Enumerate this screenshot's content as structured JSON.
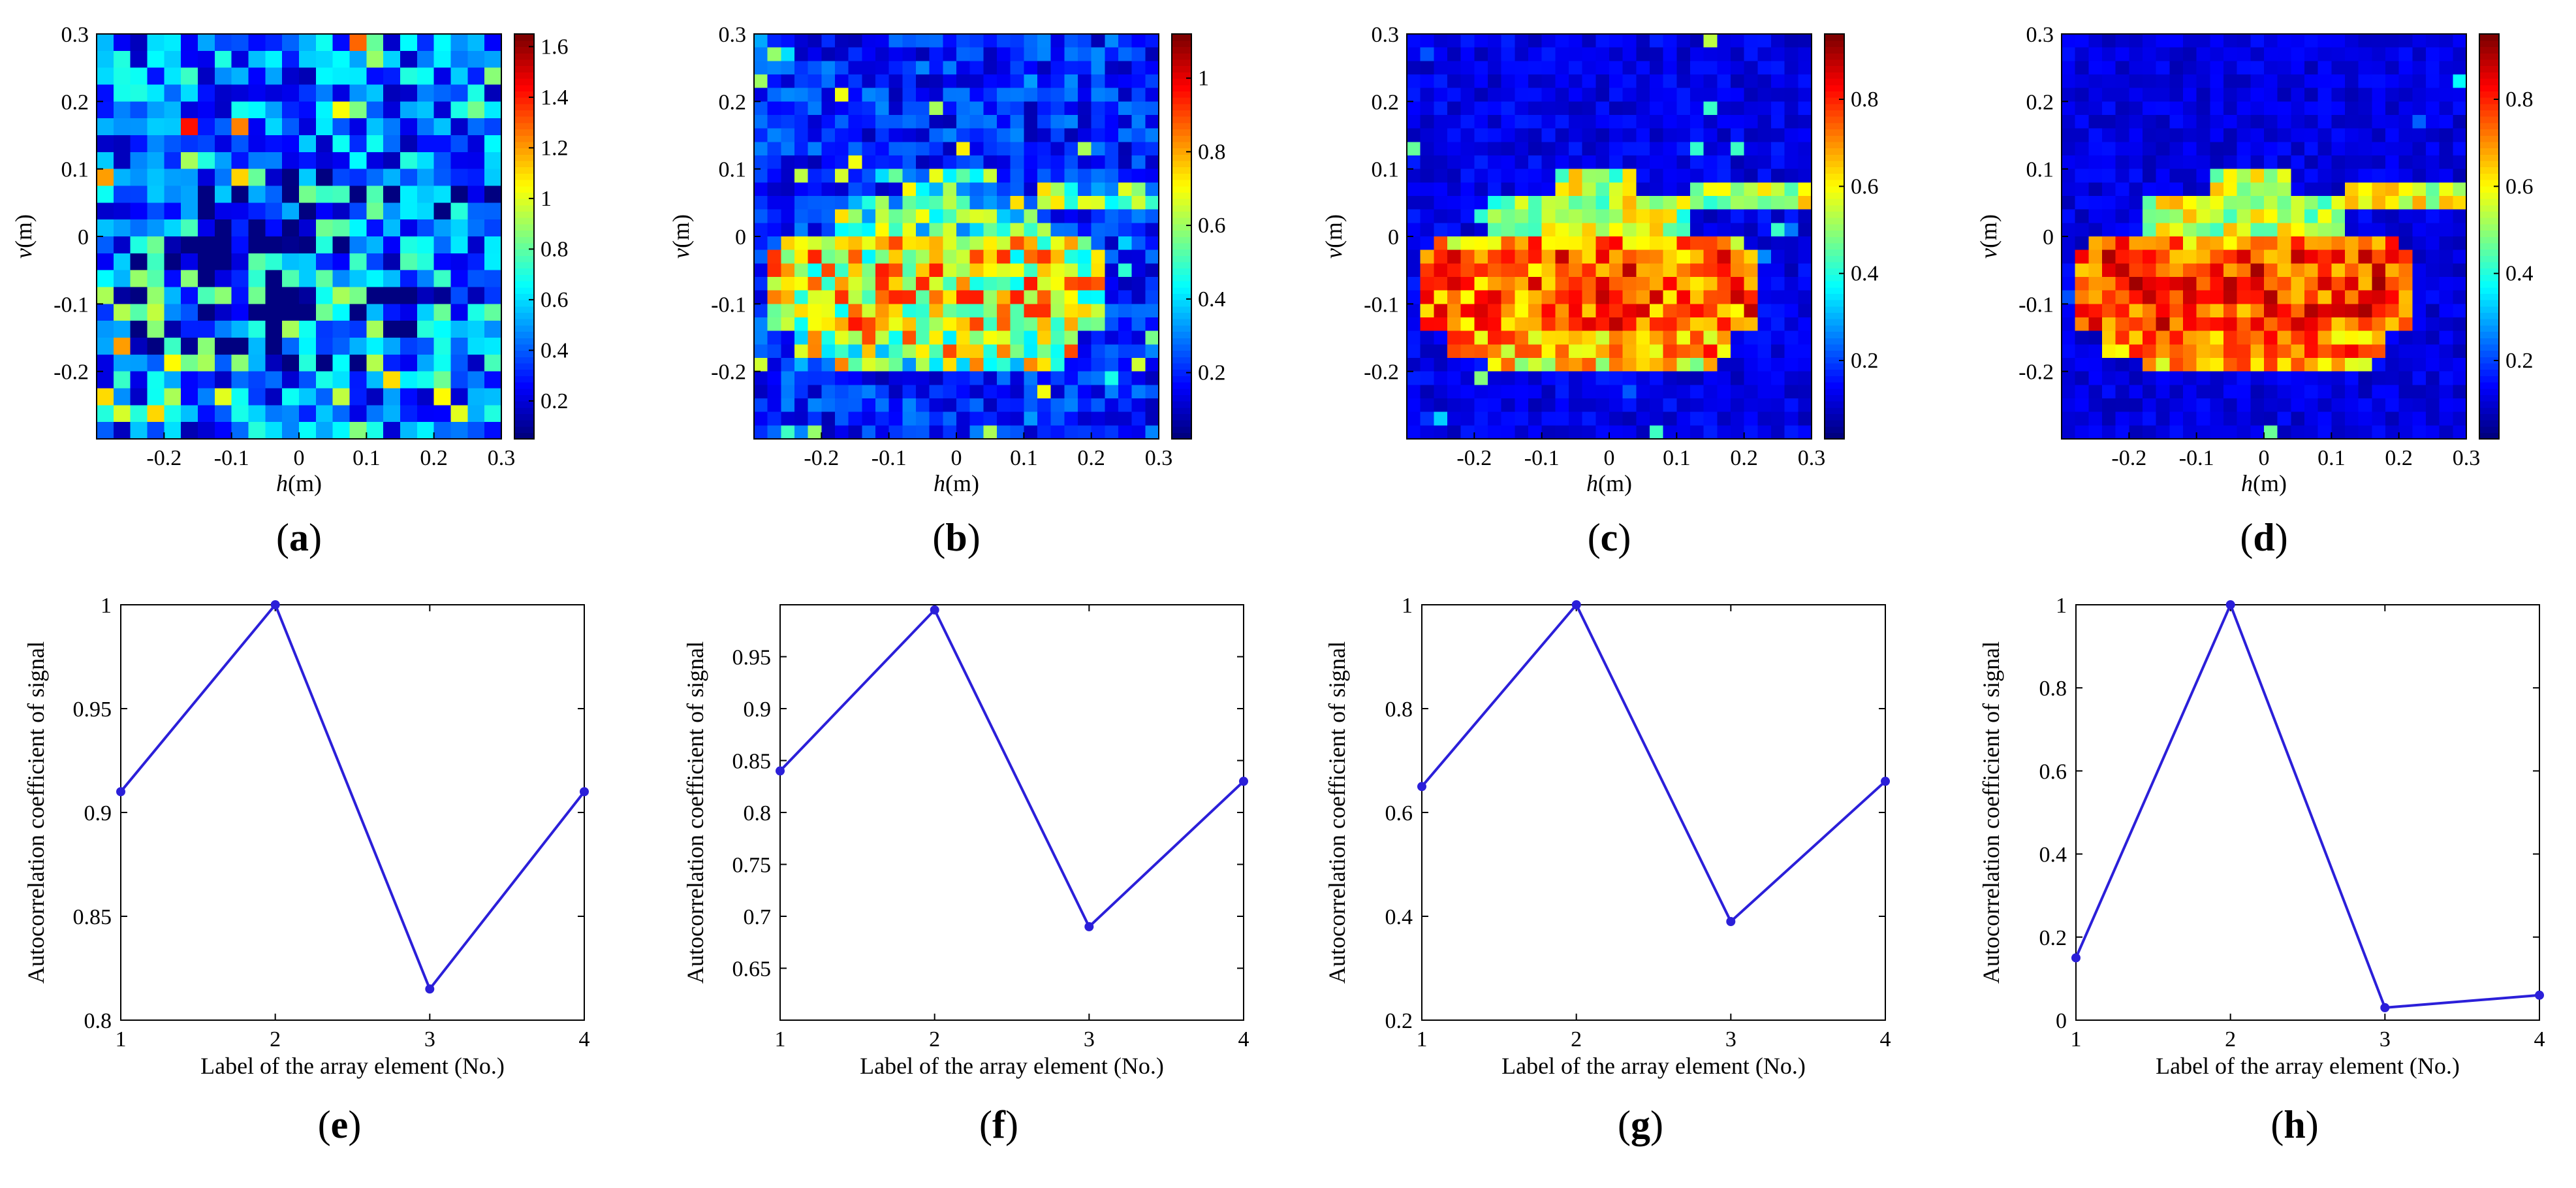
{
  "figure": {
    "heatmap_xlabel_prefix": "h",
    "heatmap_ylabel_prefix": "v",
    "unit_suffix": "(m)",
    "line_xlabel": "Label of the array element (No.)",
    "line_ylabel": "Autocorrelation coefficient of signal"
  },
  "chart_data": [
    {
      "type": "heatmap",
      "label": "a",
      "xlabel": "h(m)",
      "ylabel": "v(m)",
      "xlim": [
        -0.3,
        0.3
      ],
      "ylim": [
        -0.3,
        0.3
      ],
      "xticks": [
        "-0.2",
        "-0.1",
        "0",
        "0.1",
        "0.2",
        "0.3"
      ],
      "yticks": [
        "-0.2",
        "-0.1",
        "0",
        "0.1",
        "0.2",
        "0.3"
      ],
      "grid_size": 24,
      "colormap": "jet",
      "colorbar": {
        "min": 0.05,
        "max": 1.65,
        "ticks": [
          "0.2",
          "0.4",
          "0.6",
          "0.8",
          "1",
          "1.2",
          "1.4",
          "1.6"
        ]
      },
      "target_contrast": 0.1,
      "noise_level": 1.0
    },
    {
      "type": "heatmap",
      "label": "b",
      "xlabel": "h(m)",
      "ylabel": "v(m)",
      "xlim": [
        -0.3,
        0.3
      ],
      "ylim": [
        -0.3,
        0.3
      ],
      "xticks": [
        "-0.2",
        "-0.1",
        "0",
        "0.1",
        "0.2",
        "0.3"
      ],
      "yticks": [
        "-0.2",
        "-0.1",
        "0",
        "0.1",
        "0.2",
        "0.3"
      ],
      "grid_size": 30,
      "colormap": "jet",
      "colorbar": {
        "min": 0.02,
        "max": 1.12,
        "ticks": [
          "0.2",
          "0.4",
          "0.6",
          "0.8",
          "1"
        ]
      },
      "target_contrast": 0.7,
      "noise_level": 0.5
    },
    {
      "type": "heatmap",
      "label": "c",
      "xlabel": "h(m)",
      "ylabel": "v(m)",
      "xlim": [
        -0.3,
        0.3
      ],
      "ylim": [
        -0.3,
        0.3
      ],
      "xticks": [
        "-0.2",
        "-0.1",
        "0",
        "0.1",
        "0.2",
        "0.3"
      ],
      "yticks": [
        "-0.2",
        "-0.1",
        "0",
        "0.1",
        "0.2",
        "0.3"
      ],
      "grid_size": 30,
      "colormap": "jet",
      "colorbar": {
        "min": 0.02,
        "max": 0.95,
        "ticks": [
          "0.2",
          "0.4",
          "0.6",
          "0.8"
        ]
      },
      "target_contrast": 0.95,
      "noise_level": 0.15
    },
    {
      "type": "heatmap",
      "label": "d",
      "xlabel": "h(m)",
      "ylabel": "v(m)",
      "xlim": [
        -0.3,
        0.3
      ],
      "ylim": [
        -0.3,
        0.3
      ],
      "xticks": [
        "-0.2",
        "-0.1",
        "0",
        "0.1",
        "0.2",
        "0.3"
      ],
      "yticks": [
        "-0.2",
        "-0.1",
        "0",
        "0.1",
        "0.2",
        "0.3"
      ],
      "grid_size": 30,
      "colormap": "jet",
      "colorbar": {
        "min": 0.02,
        "max": 0.95,
        "ticks": [
          "0.2",
          "0.4",
          "0.6",
          "0.8"
        ]
      },
      "target_contrast": 1.0,
      "noise_level": 0.1
    },
    {
      "type": "line",
      "label": "e",
      "xlabel": "Label of the array element (No.)",
      "ylabel": "Autocorrelation coefficient of signal",
      "x": [
        1,
        2,
        3,
        4
      ],
      "values": [
        0.91,
        1.0,
        0.815,
        0.91
      ],
      "xlim": [
        1,
        4
      ],
      "ylim": [
        0.8,
        1.0
      ],
      "xticks": [
        "1",
        "2",
        "3",
        "4"
      ],
      "yticks": [
        "0.8",
        "0.85",
        "0.9",
        "0.95",
        "1"
      ],
      "color": "#2b1fd9"
    },
    {
      "type": "line",
      "label": "f",
      "xlabel": "Label of the array element (No.)",
      "ylabel": "Autocorrelation coefficient of signal",
      "x": [
        1,
        2,
        3,
        4
      ],
      "values": [
        0.84,
        0.995,
        0.69,
        0.83
      ],
      "xlim": [
        1,
        4
      ],
      "ylim": [
        0.6,
        1.0
      ],
      "xticks": [
        "1",
        "2",
        "3",
        "4"
      ],
      "yticks": [
        "0.65",
        "0.7",
        "0.75",
        "0.8",
        "0.85",
        "0.9",
        "0.95"
      ],
      "color": "#2b1fd9"
    },
    {
      "type": "line",
      "label": "g",
      "xlabel": "Label of the array element (No.)",
      "ylabel": "Autocorrelation coefficient of signal",
      "x": [
        1,
        2,
        3,
        4
      ],
      "values": [
        0.65,
        1.0,
        0.39,
        0.66
      ],
      "xlim": [
        1,
        4
      ],
      "ylim": [
        0.2,
        1.0
      ],
      "xticks": [
        "1",
        "2",
        "3",
        "4"
      ],
      "yticks": [
        "0.2",
        "0.4",
        "0.6",
        "0.8",
        "1"
      ],
      "color": "#2b1fd9"
    },
    {
      "type": "line",
      "label": "h",
      "xlabel": "Label of the array element (No.)",
      "ylabel": "Autocorrelation coefficient of signal",
      "x": [
        1,
        2,
        3,
        4
      ],
      "values": [
        0.15,
        1.0,
        0.03,
        0.06
      ],
      "xlim": [
        1,
        4
      ],
      "ylim": [
        0.0,
        1.0
      ],
      "xticks": [
        "1",
        "2",
        "3",
        "4"
      ],
      "yticks": [
        "0",
        "0.2",
        "0.4",
        "0.6",
        "0.8",
        "1"
      ],
      "color": "#2b1fd9"
    }
  ]
}
